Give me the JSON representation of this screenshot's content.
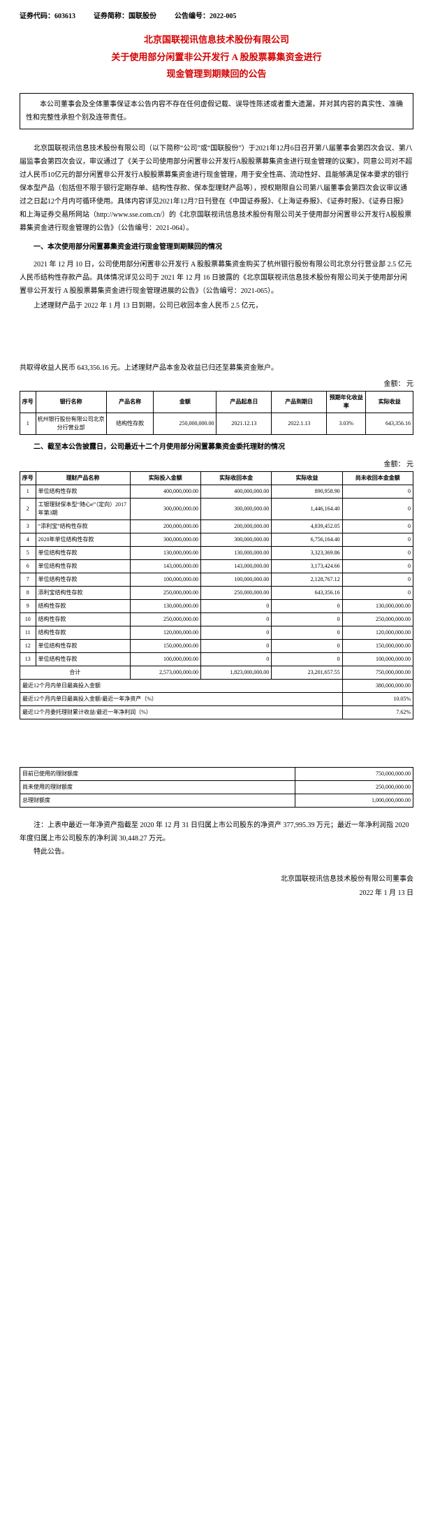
{
  "header": {
    "code_label": "证券代码：",
    "code": "603613",
    "short_label": "证券简称：",
    "short": "国联股份",
    "ann_label": "公告编号：",
    "ann": "2022-005"
  },
  "title": {
    "line1": "北京国联视讯信息技术股份有限公司",
    "line2": "关于使用部分闲置非公开发行 A 股股票募集资金进行",
    "line3": "现金管理到期赎回的公告",
    "color": "#d40000"
  },
  "disclaimer": "本公司董事会及全体董事保证本公告内容不存在任何虚假记载、误导性陈述或者重大遗漏，并对其内容的真实性、准确性和完整性承担个别及连带责任。",
  "body1": [
    "北京国联视讯信息技术股份有限公司（以下简称“公司”或“国联股份”）于2021年12月6日召开第八届董事会第四次会议、第八届监事会第四次会议，审议通过了《关于公司使用部分闲置非公开发行A股股票募集资金进行现金管理的议案》，同意公司对不超过人民币10亿元的部分闲置非公开发行A股股票募集资金进行现金管理，用于安全性高、流动性好、且能够满足保本要求的银行保本型产品（包括但不限于银行定期存单、结构性存款、保本型理财产品等），授权期限自公司第八届董事会第四次会议审议通过之日起12个月内可循环使用。具体内容详见2021年12月7日刊登在《中国证券报》、《上海证券报》、《证券时报》、《证券日报》和上海证券交易所网站（http://www.sse.com.cn/）的《北京国联视讯信息技术股份有限公司关于使用部分闲置非公开发行A股股票募集资金进行现金管理的公告》（公告编号：2021-064）。"
  ],
  "section1_head": "一、本次使用部分闲置募集资金进行现金管理到期赎回的情况",
  "body2": [
    "2021 年 12 月 10 日，公司使用部分闲置非公开发行 A 股股票募集资金购买了杭州银行股份有限公司北京分行营业部 2.5 亿元人民币结构性存款产品。具体情况详见公司于 2021 年 12 月 16 日披露的《北京国联视讯信息技术股份有限公司关于使用部分闲置非公开发行 A 股股票募集资金进行现金管理进展的公告》（公告编号：2021-065）。",
    "上述理财产品于 2022 年 1 月 13 日到期，公司已收回本金人民币 2.5 亿元，"
  ],
  "body3": [
    "共取得收益人民币 643,356.16 元。上述理财产品本金及收益已归还至募集资金账户。"
  ],
  "unit_label": "金额：  元",
  "table1": {
    "headers": [
      "序号",
      "银行名称",
      "产品名称",
      "金额",
      "产品起息日",
      "产品到期日",
      "预期年化收益率",
      "实际收益"
    ],
    "rows": [
      [
        "1",
        "杭州银行股份有限公司北京分行营业部",
        "结构性存款",
        "250,000,000.00",
        "2021.12.13",
        "2022.1.13",
        "3.03%",
        "643,356.16"
      ]
    ]
  },
  "section2_head": "二、截至本公告披露日，公司最近十二个月使用部分闲置募集资金委托理财的情况",
  "table2": {
    "headers": [
      "序号",
      "理财产品名称",
      "实际投入金额",
      "实际收回本金",
      "实际收益",
      "尚未收回本金金额"
    ],
    "rows": [
      [
        "1",
        "单位结构性存款",
        "400,000,000.00",
        "400,000,000.00",
        "890,958.90",
        "0"
      ],
      [
        "2",
        "工银理财保本型“随心e”（定向）2017年第3期",
        "300,000,000.00",
        "300,000,000.00",
        "1,446,164.40",
        "0"
      ],
      [
        "3",
        "“添利宝”结构性存款",
        "200,000,000.00",
        "200,000,000.00",
        "4,839,452.05",
        "0"
      ],
      [
        "4",
        "2020年单位结构性存款",
        "300,000,000.00",
        "300,000,000.00",
        "6,756,164.40",
        "0"
      ],
      [
        "5",
        "单位结构性存款",
        "130,000,000.00",
        "130,000,000.00",
        "3,323,369.86",
        "0"
      ],
      [
        "6",
        "单位结构性存款",
        "143,000,000.00",
        "143,000,000.00",
        "3,173,424.66",
        "0"
      ],
      [
        "7",
        "单位结构性存款",
        "100,000,000.00",
        "100,000,000.00",
        "2,128,767.12",
        "0"
      ],
      [
        "8",
        "添利宝结构性存款",
        "250,000,000.00",
        "250,000,000.00",
        "643,356.16",
        "0"
      ],
      [
        "9",
        "结构性存款",
        "130,000,000.00",
        "0",
        "0",
        "130,000,000.00"
      ],
      [
        "10",
        "结构性存款",
        "250,000,000.00",
        "0",
        "0",
        "250,000,000.00"
      ],
      [
        "11",
        "结构性存款",
        "120,000,000.00",
        "0",
        "0",
        "120,000,000.00"
      ],
      [
        "12",
        "单位结构性存款",
        "150,000,000.00",
        "0",
        "0",
        "150,000,000.00"
      ],
      [
        "13",
        "单位结构性存款",
        "100,000,000.00",
        "0",
        "0",
        "100,000,000.00"
      ]
    ],
    "sum_row": [
      "合计",
      "",
      "2,573,000,000.00",
      "1,823,000,000.00",
      "23,201,657.55",
      "750,000,000.00"
    ],
    "extra_rows": [
      [
        "最近12个月内单日最高投入金额",
        "",
        "",
        "",
        "",
        "380,000,000.00"
      ],
      [
        "最近12个月内单日最高投入金额/最近一年净资产（%）",
        "",
        "",
        "",
        "",
        "10.05%"
      ],
      [
        "最近12个月委托理财累计收益/最近一年净利润（%）",
        "",
        "",
        "",
        "",
        "7.62%"
      ]
    ]
  },
  "table3": {
    "rows": [
      [
        "目前已使用的理财额度",
        "750,000,000.00"
      ],
      [
        "尚未使用的理财额度",
        "250,000,000.00"
      ],
      [
        "总理财额度",
        "1,000,000,000.00"
      ]
    ]
  },
  "note": [
    "注：上表中最近一年净资产指截至 2020 年 12 月 31 日归属上市公司股东的净资产 377,995.39 万元；最近一年净利润指 2020 年度归属上市公司股东的净利润 30,448.27 万元。",
    "特此公告。"
  ],
  "signature": {
    "company": "北京国联视讯信息技术股份有限公司董事会",
    "date": "2022 年 1 月 13 日"
  }
}
